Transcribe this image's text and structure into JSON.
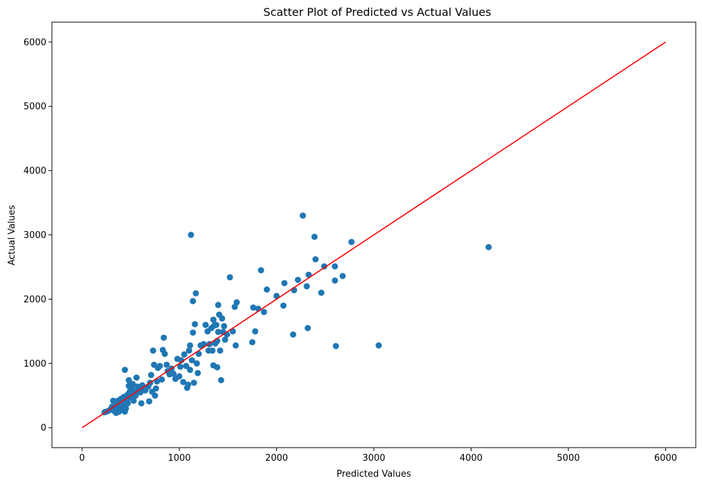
{
  "chart_data": {
    "type": "scatter",
    "title": "Scatter Plot of Predicted vs Actual Values",
    "xlabel": "Predicted Values",
    "ylabel": "Actual Values",
    "xlim": [
      -310,
      6310
    ],
    "ylim": [
      -310,
      6310
    ],
    "xticks": [
      0,
      1000,
      2000,
      3000,
      4000,
      5000,
      6000
    ],
    "yticks": [
      0,
      1000,
      2000,
      3000,
      4000,
      5000,
      6000
    ],
    "xtick_labels": [
      "0",
      "1000",
      "2000",
      "3000",
      "4000",
      "5000",
      "6000"
    ],
    "ytick_labels": [
      "0",
      "1000",
      "2000",
      "3000",
      "4000",
      "5000",
      "6000"
    ],
    "grid": false,
    "point_color": "#1f77b4",
    "reference_line": {
      "x": [
        0,
        6000
      ],
      "y": [
        0,
        6000
      ],
      "color": "#ff0000"
    },
    "points": [
      [
        230,
        240
      ],
      [
        250,
        250
      ],
      [
        270,
        260
      ],
      [
        290,
        280
      ],
      [
        300,
        300
      ],
      [
        310,
        330
      ],
      [
        320,
        420
      ],
      [
        330,
        260
      ],
      [
        340,
        300
      ],
      [
        350,
        230
      ],
      [
        360,
        280
      ],
      [
        360,
        350
      ],
      [
        370,
        420
      ],
      [
        380,
        310
      ],
      [
        380,
        250
      ],
      [
        390,
        400
      ],
      [
        400,
        330
      ],
      [
        400,
        450
      ],
      [
        410,
        280
      ],
      [
        420,
        370
      ],
      [
        430,
        480
      ],
      [
        440,
        250
      ],
      [
        440,
        900
      ],
      [
        450,
        300
      ],
      [
        460,
        420
      ],
      [
        470,
        380
      ],
      [
        470,
        520
      ],
      [
        480,
        650
      ],
      [
        480,
        740
      ],
      [
        490,
        560
      ],
      [
        500,
        470
      ],
      [
        510,
        610
      ],
      [
        520,
        680
      ],
      [
        530,
        420
      ],
      [
        540,
        560
      ],
      [
        550,
        500
      ],
      [
        560,
        780
      ],
      [
        570,
        640
      ],
      [
        580,
        600
      ],
      [
        600,
        550
      ],
      [
        610,
        380
      ],
      [
        620,
        660
      ],
      [
        640,
        610
      ],
      [
        650,
        580
      ],
      [
        680,
        640
      ],
      [
        690,
        410
      ],
      [
        700,
        700
      ],
      [
        710,
        820
      ],
      [
        720,
        560
      ],
      [
        730,
        1200
      ],
      [
        740,
        980
      ],
      [
        750,
        500
      ],
      [
        760,
        610
      ],
      [
        770,
        720
      ],
      [
        780,
        930
      ],
      [
        800,
        960
      ],
      [
        820,
        750
      ],
      [
        830,
        1210
      ],
      [
        840,
        1400
      ],
      [
        850,
        1150
      ],
      [
        870,
        980
      ],
      [
        880,
        880
      ],
      [
        900,
        830
      ],
      [
        920,
        920
      ],
      [
        940,
        840
      ],
      [
        960,
        760
      ],
      [
        980,
        1070
      ],
      [
        1000,
        800
      ],
      [
        1010,
        950
      ],
      [
        1020,
        1050
      ],
      [
        1040,
        710
      ],
      [
        1050,
        1140
      ],
      [
        1070,
        960
      ],
      [
        1080,
        620
      ],
      [
        1090,
        670
      ],
      [
        1100,
        1200
      ],
      [
        1110,
        1280
      ],
      [
        1110,
        900
      ],
      [
        1120,
        3000
      ],
      [
        1130,
        1050
      ],
      [
        1140,
        1480
      ],
      [
        1140,
        1970
      ],
      [
        1150,
        700
      ],
      [
        1160,
        1610
      ],
      [
        1170,
        2090
      ],
      [
        1180,
        1000
      ],
      [
        1190,
        850
      ],
      [
        1200,
        1150
      ],
      [
        1220,
        1280
      ],
      [
        1250,
        1300
      ],
      [
        1270,
        1600
      ],
      [
        1290,
        1500
      ],
      [
        1300,
        1200
      ],
      [
        1310,
        1300
      ],
      [
        1330,
        1550
      ],
      [
        1340,
        1200
      ],
      [
        1350,
        1680
      ],
      [
        1350,
        970
      ],
      [
        1360,
        1590
      ],
      [
        1370,
        1310
      ],
      [
        1380,
        1600
      ],
      [
        1390,
        940
      ],
      [
        1390,
        1350
      ],
      [
        1400,
        1910
      ],
      [
        1400,
        1490
      ],
      [
        1410,
        1760
      ],
      [
        1420,
        1200
      ],
      [
        1430,
        740
      ],
      [
        1440,
        1700
      ],
      [
        1450,
        1490
      ],
      [
        1460,
        1580
      ],
      [
        1470,
        1370
      ],
      [
        1490,
        1450
      ],
      [
        1520,
        2340
      ],
      [
        1550,
        1500
      ],
      [
        1570,
        1880
      ],
      [
        1580,
        1280
      ],
      [
        1590,
        1950
      ],
      [
        1750,
        1330
      ],
      [
        1760,
        1870
      ],
      [
        1780,
        1500
      ],
      [
        1810,
        1850
      ],
      [
        1840,
        2450
      ],
      [
        1870,
        1800
      ],
      [
        1900,
        2150
      ],
      [
        2000,
        2050
      ],
      [
        2070,
        1900
      ],
      [
        2080,
        2250
      ],
      [
        2170,
        1450
      ],
      [
        2180,
        2140
      ],
      [
        2220,
        2300
      ],
      [
        2270,
        3300
      ],
      [
        2310,
        2200
      ],
      [
        2320,
        1550
      ],
      [
        2330,
        2380
      ],
      [
        2390,
        2970
      ],
      [
        2400,
        2620
      ],
      [
        2460,
        2100
      ],
      [
        2490,
        2510
      ],
      [
        2600,
        2290
      ],
      [
        2600,
        2510
      ],
      [
        2610,
        1270
      ],
      [
        2680,
        2360
      ],
      [
        2770,
        2890
      ],
      [
        3050,
        1280
      ],
      [
        4180,
        2810
      ]
    ]
  }
}
